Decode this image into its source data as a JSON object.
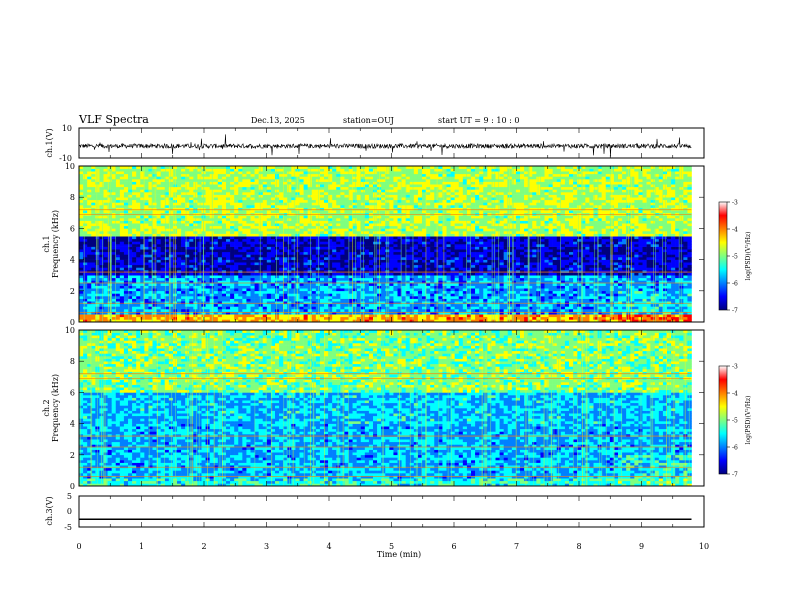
{
  "header": {
    "title": "VLF Spectra",
    "date": "Dec.13, 2025",
    "station": "station=OUJ",
    "start_ut": "start  UT =  9 : 10 : 0"
  },
  "colors": {
    "colormap": [
      "#00007f",
      "#0000ff",
      "#0080ff",
      "#00ffff",
      "#7fff7f",
      "#ffff00",
      "#ff8000",
      "#ff0000",
      "#ffffff"
    ]
  },
  "chart_data": [
    {
      "type": "line",
      "name": "ch1-waveform",
      "ylabel": "ch.1(V)",
      "ylim": [
        -10,
        10
      ],
      "yticks": [
        "10",
        "-10"
      ],
      "xlim": [
        0,
        10
      ],
      "baseline": -2,
      "description_note": "noisy waveform ending near 9.8 min"
    },
    {
      "type": "heatmap",
      "name": "ch1-spectrogram",
      "ylabel": "ch.1",
      "ylabel2": "Frequency (kHz)",
      "ylim": [
        0,
        10
      ],
      "yticks": [
        "0",
        "2",
        "4",
        "6",
        "8",
        "10"
      ],
      "xlim": [
        0,
        10
      ],
      "data_end_min": 9.8,
      "colorbar": {
        "label": "log(PSD)(V²/Hz)",
        "ticks": [
          "-3",
          "-4",
          "-5",
          "-6",
          "-7"
        ],
        "range": [
          -7,
          -3
        ]
      }
    },
    {
      "type": "heatmap",
      "name": "ch2-spectrogram",
      "ylabel": "ch.2",
      "ylabel2": "Frequency (kHz)",
      "ylim": [
        0,
        10
      ],
      "yticks": [
        "0",
        "2",
        "4",
        "6",
        "8",
        "10"
      ],
      "xlim": [
        0,
        10
      ],
      "data_end_min": 9.8,
      "colorbar": {
        "label": "log(PSD)(V²/Hz)",
        "ticks": [
          "-3",
          "-4",
          "-5",
          "-6",
          "-7"
        ],
        "range": [
          -7,
          -3
        ]
      }
    },
    {
      "type": "line",
      "name": "ch3-waveform",
      "ylabel": "ch.3(V)",
      "ylim": [
        -5,
        5
      ],
      "yticks": [
        "5",
        "0",
        "-5"
      ],
      "xlim": [
        0,
        10
      ],
      "baseline": -2.5
    }
  ],
  "xaxis": {
    "label": "Time (min)",
    "ticks": [
      "0",
      "1",
      "2",
      "3",
      "4",
      "5",
      "6",
      "7",
      "8",
      "9",
      "10"
    ]
  }
}
